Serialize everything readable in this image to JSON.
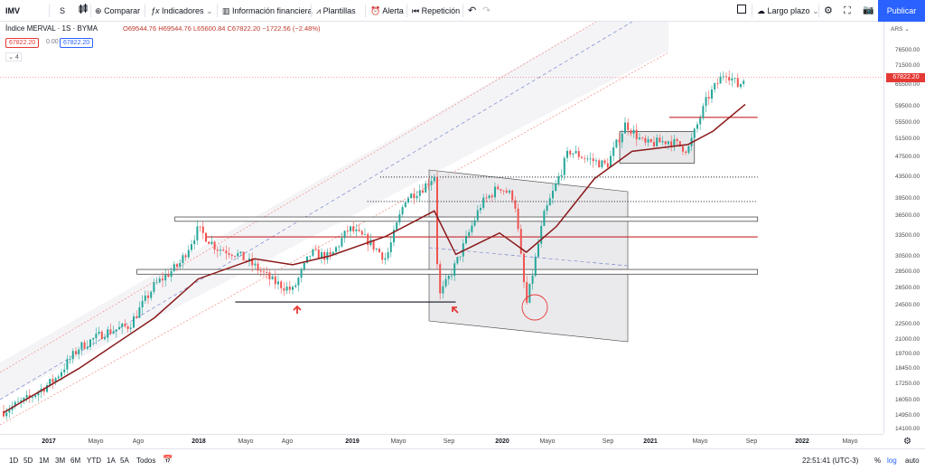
{
  "toolbar": {
    "symbol": "IMV",
    "interval": "S",
    "compare": "Comparar",
    "indicators": "Indicadores",
    "financials": "Información financiera",
    "templates": "Plantillas",
    "alert": "Alerta",
    "replay": "Repetición",
    "layout_name": "Largo plazo",
    "publish": "Publicar"
  },
  "legend": {
    "title": "Índice MERVAL · 1S · BYMA",
    "ohlc": "O69544.76 H69544.76 L65600.84 C67822.20 −1722.56 (−2.48%)",
    "bid": "67822.20",
    "spread": "0.00",
    "ask": "67822.20",
    "indicator_count": "4"
  },
  "price_axis": {
    "currency": "ARS",
    "ticks": [
      "76500.00",
      "71500.00",
      "65500.00",
      "59500.00",
      "55500.00",
      "51500.00",
      "47500.00",
      "43500.00",
      "39500.00",
      "36500.00",
      "33500.00",
      "30500.00",
      "28500.00",
      "26500.00",
      "24500.00",
      "22500.00",
      "21000.00",
      "19700.00",
      "18450.00",
      "17250.00",
      "16050.00",
      "14950.00",
      "14100.00"
    ],
    "last_price": "67822.20"
  },
  "time_axis": {
    "labels": [
      {
        "text": "2017",
        "year": true
      },
      {
        "text": "Mayo",
        "year": false
      },
      {
        "text": "Ago",
        "year": false
      },
      {
        "text": "2018",
        "year": true
      },
      {
        "text": "Mayo",
        "year": false
      },
      {
        "text": "Ago",
        "year": false
      },
      {
        "text": "2019",
        "year": true
      },
      {
        "text": "Mayo",
        "year": false
      },
      {
        "text": "Sep",
        "year": false
      },
      {
        "text": "2020",
        "year": true
      },
      {
        "text": "Mayo",
        "year": false
      },
      {
        "text": "Sep",
        "year": false
      },
      {
        "text": "2021",
        "year": true
      },
      {
        "text": "Mayo",
        "year": false
      },
      {
        "text": "Sep",
        "year": false
      },
      {
        "text": "2022",
        "year": true
      },
      {
        "text": "Mayo",
        "year": false
      }
    ]
  },
  "bottom_bar": {
    "ranges": [
      "1D",
      "5D",
      "1M",
      "3M",
      "6M",
      "YTD",
      "1A",
      "5A",
      "Todos"
    ],
    "clock": "22:51:41 (UTC-3)",
    "percent": "%",
    "log": "log",
    "auto": "auto"
  },
  "colors": {
    "up": "#26a69a",
    "down": "#ef5350",
    "ma": "#8b1a1a",
    "accent": "#2962ff",
    "level": "#c62828"
  },
  "chart_data": {
    "type": "candlestick",
    "title": "Índice MERVAL · 1S · BYMA",
    "y_scale": "log",
    "ylim": [
      14100,
      76500
    ],
    "xlim": [
      "2016-10",
      "2022-09"
    ],
    "close_path": [
      [
        "2016-10-01",
        15300
      ],
      [
        "2016-12-01",
        16200
      ],
      [
        "2017-02-01",
        17600
      ],
      [
        "2017-04-01",
        20300
      ],
      [
        "2017-06-01",
        21700
      ],
      [
        "2017-08-01",
        22400
      ],
      [
        "2017-10-01",
        26800
      ],
      [
        "2017-12-01",
        29500
      ],
      [
        "2018-01-15",
        34500
      ],
      [
        "2018-03-01",
        31700
      ],
      [
        "2018-04-15",
        31000
      ],
      [
        "2018-06-01",
        29200
      ],
      [
        "2018-07-15",
        27300
      ],
      [
        "2018-09-01",
        26200
      ],
      [
        "2018-10-15",
        31000
      ],
      [
        "2018-12-01",
        30400
      ],
      [
        "2019-01-15",
        34600
      ],
      [
        "2019-03-01",
        32800
      ],
      [
        "2019-04-15",
        30200
      ],
      [
        "2019-06-01",
        39500
      ],
      [
        "2019-07-15",
        41600
      ],
      [
        "2019-08-10",
        43800
      ],
      [
        "2019-08-20",
        25300
      ],
      [
        "2019-10-01",
        29500
      ],
      [
        "2019-12-01",
        38500
      ],
      [
        "2020-01-15",
        41800
      ],
      [
        "2020-02-20",
        39600
      ],
      [
        "2020-03-20",
        24500
      ],
      [
        "2020-05-01",
        36500
      ],
      [
        "2020-07-01",
        48900
      ],
      [
        "2020-08-15",
        47200
      ],
      [
        "2020-10-01",
        45800
      ],
      [
        "2020-11-15",
        55200
      ],
      [
        "2021-01-01",
        50300
      ],
      [
        "2021-03-01",
        51200
      ],
      [
        "2021-04-15",
        49100
      ],
      [
        "2021-06-01",
        61800
      ],
      [
        "2021-07-15",
        69800
      ],
      [
        "2021-08-15",
        65300
      ],
      [
        "2021-09-01",
        67822.2
      ]
    ],
    "moving_average": [
      [
        "2016-10-01",
        15200
      ],
      [
        "2017-04-01",
        18500
      ],
      [
        "2017-10-01",
        23200
      ],
      [
        "2018-01-15",
        27600
      ],
      [
        "2018-06-01",
        30200
      ],
      [
        "2018-09-01",
        29400
      ],
      [
        "2018-12-01",
        30600
      ],
      [
        "2019-04-15",
        33400
      ],
      [
        "2019-08-10",
        37400
      ],
      [
        "2019-10-01",
        30800
      ],
      [
        "2020-01-15",
        33900
      ],
      [
        "2020-03-20",
        31100
      ],
      [
        "2020-06-01",
        34900
      ],
      [
        "2020-09-01",
        43200
      ],
      [
        "2020-12-01",
        48800
      ],
      [
        "2021-04-15",
        50300
      ],
      [
        "2021-06-15",
        53400
      ],
      [
        "2021-09-01",
        60200
      ]
    ],
    "horizontal_levels": [
      {
        "from": "2021-03-01",
        "to": "2021-10-01",
        "y": 56800,
        "color": "#c62828"
      },
      {
        "from": "2018-02-01",
        "to": "2021-10-01",
        "y": 33300,
        "color": "#c62828"
      },
      {
        "from": "2019-04-01",
        "to": "2021-10-01",
        "y": 43500,
        "color": "#131722",
        "style": "dotted"
      },
      {
        "from": "2019-03-01",
        "to": "2021-10-01",
        "y": 39000,
        "color": "#131722",
        "style": "dotted"
      },
      {
        "from": "2018-04-15",
        "to": "2019-10-01",
        "y": 24900,
        "color": "#131722"
      }
    ],
    "horizontal_bands": [
      {
        "from": "2017-11-20",
        "to": "2021-10-01",
        "y1": 35700,
        "y2": 36400
      },
      {
        "from": "2017-08-20",
        "to": "2021-10-01",
        "y1": 28200,
        "y2": 28800
      }
    ],
    "zones": [
      {
        "from": "2020-11-01",
        "to": "2021-05-01",
        "y1": 46300,
        "y2": 53300
      }
    ],
    "last_price": 67822.2
  }
}
